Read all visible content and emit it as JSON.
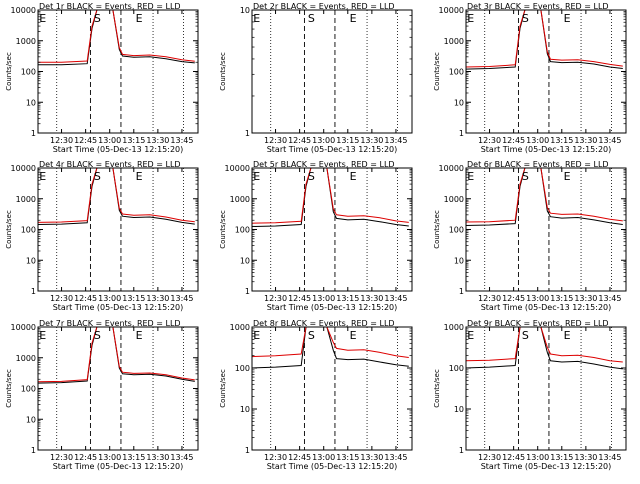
{
  "figure": {
    "xlabel": "Start Time (05-Dec-13 12:15:20)",
    "ylabel": "Counts/sec",
    "legend_note": "BLACK = Events, RED = LLD"
  },
  "colors": {
    "events": "#000000",
    "lld": "#dd0000",
    "axes": "#000000",
    "background": "#ffffff"
  },
  "chart_data": [
    {
      "type": "line",
      "title": "Det 1r BLACK = Events, RED = LLD",
      "xlabel": "Start Time (05-Dec-13 12:15:20)",
      "ylabel": "Counts/sec",
      "yscale": "log",
      "xlim": [
        "12:15:20",
        "13:55:00"
      ],
      "ylim": [
        1,
        10000
      ],
      "x_ticks": [
        "12:30",
        "12:45",
        "13:00",
        "13:15",
        "13:30",
        "13:45"
      ],
      "y_ticks": [
        "1",
        "10",
        "100",
        "1000",
        "10000"
      ],
      "markers": [
        {
          "label": "E",
          "time": "12:18"
        },
        {
          "label": "S",
          "time": "12:52"
        },
        {
          "label": "E",
          "time": "13:18"
        }
      ],
      "dashed_lines": [
        "12:48",
        "13:07"
      ],
      "dotted_lines": [
        "12:27",
        "13:27",
        "13:46"
      ],
      "series": [
        {
          "name": "Events",
          "color": "black",
          "times": [
            "12:15",
            "12:30",
            "12:46",
            "12:49",
            "12:52",
            "12:58",
            "13:02",
            "13:06",
            "13:08",
            "13:15",
            "13:25",
            "13:35",
            "13:45",
            "13:53"
          ],
          "values": [
            165,
            165,
            180,
            2500,
            10000,
            10000,
            10000,
            520,
            320,
            290,
            300,
            260,
            210,
            190
          ]
        },
        {
          "name": "LLD",
          "color": "red",
          "times": [
            "12:15",
            "12:30",
            "12:46",
            "12:49",
            "12:52",
            "12:58",
            "13:02",
            "13:06",
            "13:08",
            "13:15",
            "13:25",
            "13:35",
            "13:45",
            "13:53"
          ],
          "values": [
            200,
            200,
            220,
            3000,
            10000,
            10000,
            10000,
            600,
            360,
            330,
            345,
            300,
            240,
            215
          ]
        }
      ]
    },
    {
      "type": "line",
      "title": "Det 2r BLACK = Events, RED = LLD",
      "xlabel": "Start Time (05-Dec-13 12:15:20)",
      "ylabel": "Counts/sec",
      "yscale": "log",
      "xlim": [
        "12:15:20",
        "13:55:00"
      ],
      "ylim": [
        1,
        10
      ],
      "x_ticks": [
        "12:30",
        "12:45",
        "13:00",
        "13:15",
        "13:30",
        "13:45"
      ],
      "y_ticks": [
        "1",
        "10"
      ],
      "markers": [
        {
          "label": "E",
          "time": "12:18"
        },
        {
          "label": "S",
          "time": "12:52"
        },
        {
          "label": "E",
          "time": "13:18"
        }
      ],
      "dashed_lines": [
        "12:48",
        "13:07"
      ],
      "dotted_lines": [
        "12:27",
        "13:27",
        "13:46"
      ],
      "series": []
    },
    {
      "type": "line",
      "title": "Det 3r BLACK = Events, RED = LLD",
      "xlabel": "Start Time (05-Dec-13 12:15:20)",
      "ylabel": "Counts/sec",
      "yscale": "log",
      "xlim": [
        "12:15:20",
        "13:55:00"
      ],
      "ylim": [
        1,
        10000
      ],
      "x_ticks": [
        "12:30",
        "12:45",
        "13:00",
        "13:15",
        "13:30",
        "13:45"
      ],
      "y_ticks": [
        "1",
        "10",
        "100",
        "1000",
        "10000"
      ],
      "markers": [
        {
          "label": "E",
          "time": "12:18"
        },
        {
          "label": "S",
          "time": "12:52"
        },
        {
          "label": "E",
          "time": "13:18"
        }
      ],
      "dashed_lines": [
        "12:48",
        "13:07"
      ],
      "dotted_lines": [
        "12:27",
        "13:27",
        "13:46"
      ],
      "series": [
        {
          "name": "Events",
          "color": "black",
          "times": [
            "12:15",
            "12:30",
            "12:46",
            "12:49",
            "12:52",
            "12:58",
            "13:02",
            "13:06",
            "13:08",
            "13:15",
            "13:25",
            "13:35",
            "13:45",
            "13:53"
          ],
          "values": [
            120,
            125,
            140,
            2500,
            10000,
            10000,
            10000,
            380,
            210,
            195,
            200,
            175,
            140,
            125
          ]
        },
        {
          "name": "LLD",
          "color": "red",
          "times": [
            "12:15",
            "12:30",
            "12:46",
            "12:49",
            "12:52",
            "12:58",
            "13:02",
            "13:06",
            "13:08",
            "13:15",
            "13:25",
            "13:35",
            "13:45",
            "13:53"
          ],
          "values": [
            140,
            145,
            165,
            3000,
            10000,
            10000,
            10000,
            440,
            250,
            235,
            240,
            210,
            170,
            150
          ]
        }
      ]
    },
    {
      "type": "line",
      "title": "Det 4r BLACK = Events, RED = LLD",
      "xlabel": "Start Time (05-Dec-13 12:15:20)",
      "ylabel": "Counts/sec",
      "yscale": "log",
      "xlim": [
        "12:15:20",
        "13:55:00"
      ],
      "ylim": [
        1,
        10000
      ],
      "x_ticks": [
        "12:30",
        "12:45",
        "13:00",
        "13:15",
        "13:30",
        "13:45"
      ],
      "y_ticks": [
        "1",
        "10",
        "100",
        "1000",
        "10000"
      ],
      "markers": [
        {
          "label": "E",
          "time": "12:18"
        },
        {
          "label": "S",
          "time": "12:52"
        },
        {
          "label": "E",
          "time": "13:18"
        }
      ],
      "dashed_lines": [
        "12:48",
        "13:07"
      ],
      "dotted_lines": [
        "12:27",
        "13:27",
        "13:46"
      ],
      "series": [
        {
          "name": "Events",
          "color": "black",
          "times": [
            "12:15",
            "12:30",
            "12:46",
            "12:49",
            "12:52",
            "12:58",
            "13:02",
            "13:06",
            "13:08",
            "13:15",
            "13:25",
            "13:35",
            "13:45",
            "13:53"
          ],
          "values": [
            145,
            150,
            165,
            2500,
            10000,
            10000,
            10000,
            420,
            270,
            245,
            255,
            215,
            170,
            150
          ]
        },
        {
          "name": "LLD",
          "color": "red",
          "times": [
            "12:15",
            "12:30",
            "12:46",
            "12:49",
            "12:52",
            "12:58",
            "13:02",
            "13:06",
            "13:08",
            "13:15",
            "13:25",
            "13:35",
            "13:45",
            "13:53"
          ],
          "values": [
            170,
            175,
            195,
            3000,
            10000,
            10000,
            10000,
            490,
            320,
            290,
            300,
            255,
            200,
            180
          ]
        }
      ]
    },
    {
      "type": "line",
      "title": "Det 5r BLACK = Events, RED = LLD",
      "xlabel": "Start Time (05-Dec-13 12:15:20)",
      "ylabel": "Counts/sec",
      "yscale": "log",
      "xlim": [
        "12:15:20",
        "13:55:00"
      ],
      "ylim": [
        1,
        10000
      ],
      "x_ticks": [
        "12:30",
        "12:45",
        "13:00",
        "13:15",
        "13:30",
        "13:45"
      ],
      "y_ticks": [
        "1",
        "10",
        "100",
        "1000",
        "10000"
      ],
      "markers": [
        {
          "label": "E",
          "time": "12:18"
        },
        {
          "label": "S",
          "time": "12:52"
        },
        {
          "label": "E",
          "time": "13:18"
        }
      ],
      "dashed_lines": [
        "12:48",
        "13:07"
      ],
      "dotted_lines": [
        "12:27",
        "13:27",
        "13:46"
      ],
      "series": [
        {
          "name": "Events",
          "color": "black",
          "times": [
            "12:15",
            "12:30",
            "12:46",
            "12:49",
            "12:52",
            "12:58",
            "13:02",
            "13:06",
            "13:08",
            "13:15",
            "13:25",
            "13:35",
            "13:45",
            "13:53"
          ],
          "values": [
            125,
            130,
            145,
            2500,
            10000,
            10000,
            10000,
            380,
            230,
            205,
            215,
            180,
            145,
            130
          ]
        },
        {
          "name": "LLD",
          "color": "red",
          "times": [
            "12:15",
            "12:30",
            "12:46",
            "12:49",
            "12:52",
            "12:58",
            "13:02",
            "13:06",
            "13:08",
            "13:15",
            "13:25",
            "13:35",
            "13:45",
            "13:53"
          ],
          "values": [
            160,
            165,
            185,
            3000,
            10000,
            10000,
            10000,
            470,
            300,
            270,
            280,
            240,
            190,
            170
          ]
        }
      ]
    },
    {
      "type": "line",
      "title": "Det 6r BLACK = Events, RED = LLD",
      "xlabel": "Start Time (05-Dec-13 12:15:20)",
      "ylabel": "Counts/sec",
      "yscale": "log",
      "xlim": [
        "12:15:20",
        "13:55:00"
      ],
      "ylim": [
        1,
        10000
      ],
      "x_ticks": [
        "12:30",
        "12:45",
        "13:00",
        "13:15",
        "13:30",
        "13:45"
      ],
      "y_ticks": [
        "1",
        "10",
        "100",
        "1000",
        "10000"
      ],
      "markers": [
        {
          "label": "E",
          "time": "12:18"
        },
        {
          "label": "S",
          "time": "12:52"
        },
        {
          "label": "E",
          "time": "13:18"
        }
      ],
      "dashed_lines": [
        "12:48",
        "13:07"
      ],
      "dotted_lines": [
        "12:27",
        "13:27",
        "13:46"
      ],
      "series": [
        {
          "name": "Events",
          "color": "black",
          "times": [
            "12:15",
            "12:30",
            "12:46",
            "12:49",
            "12:52",
            "12:58",
            "13:02",
            "13:06",
            "13:08",
            "13:15",
            "13:25",
            "13:35",
            "13:45",
            "13:53"
          ],
          "values": [
            135,
            140,
            155,
            2500,
            10000,
            10000,
            10000,
            400,
            260,
            235,
            245,
            205,
            165,
            145
          ]
        },
        {
          "name": "LLD",
          "color": "red",
          "times": [
            "12:15",
            "12:30",
            "12:46",
            "12:49",
            "12:52",
            "12:58",
            "13:02",
            "13:06",
            "13:08",
            "13:15",
            "13:25",
            "13:35",
            "13:45",
            "13:53"
          ],
          "values": [
            175,
            180,
            200,
            3000,
            10000,
            10000,
            10000,
            520,
            340,
            310,
            320,
            270,
            215,
            190
          ]
        }
      ]
    },
    {
      "type": "line",
      "title": "Det 7r BLACK = Events, RED = LLD",
      "xlabel": "Start Time (05-Dec-13 12:15:20)",
      "ylabel": "Counts/sec",
      "yscale": "log",
      "xlim": [
        "12:15:20",
        "13:55:00"
      ],
      "ylim": [
        1,
        10000
      ],
      "x_ticks": [
        "12:30",
        "12:45",
        "13:00",
        "13:15",
        "13:30",
        "13:45"
      ],
      "y_ticks": [
        "1",
        "10",
        "100",
        "1000",
        "10000"
      ],
      "markers": [
        {
          "label": "E",
          "time": "12:18"
        },
        {
          "label": "S",
          "time": "12:52"
        },
        {
          "label": "E",
          "time": "13:18"
        }
      ],
      "dashed_lines": [
        "12:48",
        "13:07"
      ],
      "dotted_lines": [
        "12:27",
        "13:27",
        "13:46"
      ],
      "series": [
        {
          "name": "Events",
          "color": "black",
          "times": [
            "12:15",
            "12:30",
            "12:46",
            "12:49",
            "12:52",
            "12:58",
            "13:02",
            "13:06",
            "13:08",
            "13:15",
            "13:25",
            "13:35",
            "13:45",
            "13:53"
          ],
          "values": [
            150,
            155,
            175,
            2500,
            10000,
            10000,
            10000,
            460,
            300,
            280,
            290,
            255,
            200,
            170
          ]
        },
        {
          "name": "LLD",
          "color": "red",
          "times": [
            "12:15",
            "12:30",
            "12:46",
            "12:49",
            "12:52",
            "12:58",
            "13:02",
            "13:06",
            "13:08",
            "13:15",
            "13:25",
            "13:35",
            "13:45",
            "13:53"
          ],
          "values": [
            165,
            170,
            195,
            3000,
            10000,
            10000,
            10000,
            520,
            340,
            310,
            320,
            280,
            220,
            190
          ]
        }
      ]
    },
    {
      "type": "line",
      "title": "Det 8r BLACK = Events, RED = LLD",
      "xlabel": "Start Time (05-Dec-13 12:15:20)",
      "ylabel": "Counts/sec",
      "yscale": "log",
      "xlim": [
        "12:15:20",
        "13:55:00"
      ],
      "ylim": [
        1,
        1000
      ],
      "x_ticks": [
        "12:30",
        "12:45",
        "13:00",
        "13:15",
        "13:30",
        "13:45"
      ],
      "y_ticks": [
        "1",
        "10",
        "100",
        "1000"
      ],
      "markers": [
        {
          "label": "E",
          "time": "12:18"
        },
        {
          "label": "S",
          "time": "12:52"
        },
        {
          "label": "E",
          "time": "13:18"
        }
      ],
      "dashed_lines": [
        "12:48",
        "13:07"
      ],
      "dotted_lines": [
        "12:27",
        "13:27",
        "13:46"
      ],
      "series": [
        {
          "name": "Events",
          "color": "black",
          "times": [
            "12:15",
            "12:30",
            "12:46",
            "12:49",
            "12:52",
            "12:58",
            "13:02",
            "13:06",
            "13:08",
            "13:15",
            "13:25",
            "13:35",
            "13:45",
            "13:53"
          ],
          "values": [
            100,
            105,
            115,
            1000,
            1000,
            1000,
            1000,
            270,
            170,
            160,
            165,
            140,
            120,
            110
          ]
        },
        {
          "name": "LLD",
          "color": "red",
          "times": [
            "12:15",
            "12:30",
            "12:46",
            "12:49",
            "12:52",
            "12:58",
            "13:02",
            "13:06",
            "13:08",
            "13:15",
            "13:25",
            "13:35",
            "13:45",
            "13:53"
          ],
          "values": [
            190,
            200,
            220,
            1000,
            1000,
            1000,
            1000,
            420,
            300,
            270,
            280,
            240,
            200,
            180
          ]
        }
      ]
    },
    {
      "type": "line",
      "title": "Det 9r BLACK = Events, RED = LLD",
      "xlabel": "Start Time (05-Dec-13 12:15:20)",
      "ylabel": "Counts/sec",
      "yscale": "log",
      "xlim": [
        "12:15:20",
        "13:55:00"
      ],
      "ylim": [
        1,
        1000
      ],
      "x_ticks": [
        "12:30",
        "12:45",
        "13:00",
        "13:15",
        "13:30",
        "13:45"
      ],
      "y_ticks": [
        "1",
        "10",
        "100",
        "1000"
      ],
      "markers": [
        {
          "label": "E",
          "time": "12:18"
        },
        {
          "label": "S",
          "time": "12:52"
        },
        {
          "label": "E",
          "time": "13:18"
        }
      ],
      "dashed_lines": [
        "12:48",
        "13:07"
      ],
      "dotted_lines": [
        "12:27",
        "13:27",
        "13:46"
      ],
      "series": [
        {
          "name": "Events",
          "color": "black",
          "times": [
            "12:15",
            "12:30",
            "12:46",
            "12:49",
            "12:52",
            "12:58",
            "13:02",
            "13:06",
            "13:08",
            "13:15",
            "13:25",
            "13:35",
            "13:45",
            "13:53"
          ],
          "values": [
            100,
            105,
            115,
            1000,
            1000,
            1000,
            1000,
            240,
            150,
            140,
            145,
            125,
            105,
            95
          ]
        },
        {
          "name": "LLD",
          "color": "red",
          "times": [
            "12:15",
            "12:30",
            "12:46",
            "12:49",
            "12:52",
            "12:58",
            "13:02",
            "13:06",
            "13:08",
            "13:15",
            "13:25",
            "13:35",
            "13:45",
            "13:53"
          ],
          "values": [
            150,
            155,
            170,
            1000,
            1000,
            1000,
            1000,
            320,
            220,
            200,
            205,
            180,
            150,
            140
          ]
        }
      ]
    }
  ]
}
